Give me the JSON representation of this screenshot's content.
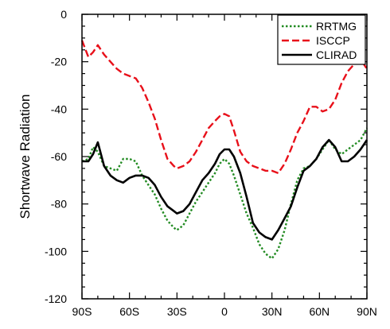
{
  "chart_data": {
    "type": "line",
    "title": "",
    "xlabel": "",
    "ylabel": "Shortwave Radiation",
    "xlim": [
      -90,
      90
    ],
    "ylim": [
      -120,
      0
    ],
    "x_ticks": [
      -90,
      -60,
      -30,
      0,
      30,
      60,
      90
    ],
    "x_tick_labels": [
      "90S",
      "60S",
      "30S",
      "0",
      "30N",
      "60N",
      "90N"
    ],
    "y_ticks": [
      -120,
      -100,
      -80,
      -60,
      -40,
      -20,
      0
    ],
    "y_tick_labels": [
      "-120",
      "-100",
      "-80",
      "-60",
      "-40",
      "-20",
      "0"
    ],
    "grid": false,
    "legend_position": "top-right",
    "x": [
      -90,
      -86,
      -83,
      -80,
      -76,
      -72,
      -68,
      -64,
      -60,
      -56,
      -52,
      -48,
      -44,
      -40,
      -36,
      -32,
      -30,
      -26,
      -22,
      -18,
      -14,
      -10,
      -6,
      -3,
      0,
      3,
      6,
      10,
      14,
      18,
      22,
      26,
      30,
      34,
      38,
      42,
      46,
      50,
      54,
      58,
      62,
      66,
      70,
      74,
      78,
      82,
      86,
      90
    ],
    "series": [
      {
        "name": "RRTMG",
        "color": "#228B22",
        "dash": "dotted",
        "values": [
          -62,
          -61,
          -56,
          -58,
          -64,
          -65,
          -66,
          -61,
          -61,
          -62,
          -68,
          -72,
          -76,
          -82,
          -87,
          -90,
          -91,
          -89,
          -84,
          -79,
          -75,
          -71,
          -67,
          -63,
          -61,
          -63,
          -68,
          -76,
          -84,
          -90,
          -97,
          -101,
          -103,
          -99,
          -91,
          -80,
          -70,
          -65,
          -64,
          -61,
          -57,
          -53,
          -57,
          -59,
          -57,
          -55,
          -53,
          -48
        ]
      },
      {
        "name": "ISCCP",
        "color": "#e8101a",
        "dash": "dashed",
        "values": [
          -11,
          -18,
          -16,
          -13,
          -17,
          -20,
          -23,
          -25,
          -26,
          -27,
          -31,
          -37,
          -44,
          -53,
          -61,
          -64,
          -65,
          -64,
          -62,
          -58,
          -53,
          -48,
          -45,
          -43,
          -42,
          -43,
          -49,
          -58,
          -62,
          -64,
          -65,
          -66,
          -66,
          -67,
          -63,
          -57,
          -50,
          -45,
          -39,
          -39,
          -41,
          -40,
          -36,
          -29,
          -24,
          -21,
          -19,
          -23
        ]
      },
      {
        "name": "CLIRAD",
        "color": "#000000",
        "dash": "solid",
        "values": [
          -62,
          -62,
          -59,
          -54,
          -64,
          -68,
          -70,
          -71,
          -69,
          -68,
          -68,
          -69,
          -72,
          -77,
          -81,
          -83,
          -84,
          -83,
          -80,
          -75,
          -70,
          -67,
          -63,
          -59,
          -57,
          -57,
          -60,
          -67,
          -77,
          -88,
          -92,
          -94,
          -95,
          -91,
          -86,
          -81,
          -73,
          -66,
          -64,
          -61,
          -56,
          -53,
          -56,
          -62,
          -62,
          -60,
          -57,
          -53
        ]
      }
    ]
  }
}
